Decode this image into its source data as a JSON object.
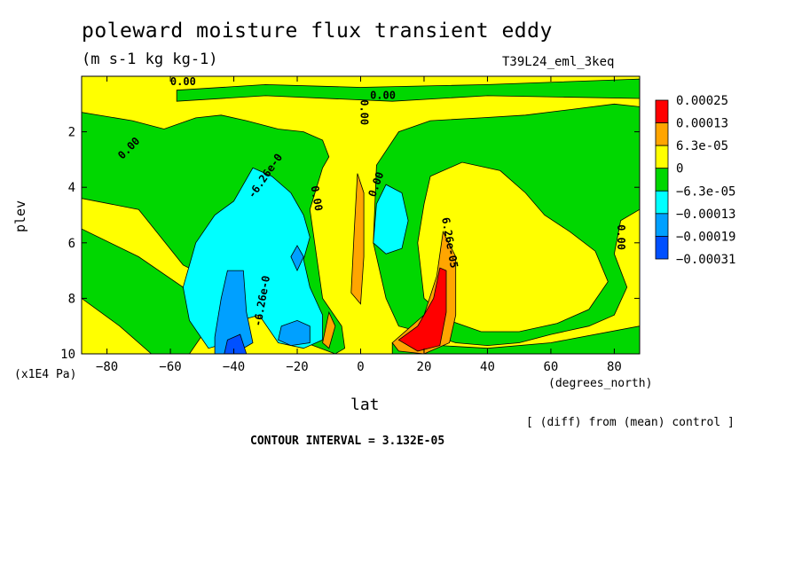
{
  "chart_data": {
    "type": "heatmap",
    "subtype": "filled-contour",
    "title": "poleward moisture flux transient eddy",
    "subtitle": "(m s-1 kg kg-1)",
    "run_label": "T39L24_eml_3keq",
    "xlabel": "lat",
    "x_unit": "(degrees_north)",
    "ylabel": "plev",
    "y_unit": "(x1E4 Pa)",
    "xlim": [
      -88,
      88
    ],
    "ylim": [
      0,
      10
    ],
    "y_inverted": true,
    "x_ticks": [
      -80,
      -60,
      -40,
      -20,
      0,
      20,
      40,
      60,
      80
    ],
    "y_ticks": [
      2,
      4,
      6,
      8,
      10
    ],
    "note": "[ (diff) from (mean) control ]",
    "contour_interval_text": "CONTOUR INTERVAL = 3.132E-05",
    "colorbar": {
      "levels": [
        "0.00025",
        "0.00013",
        "6.3e-05",
        "0",
        "-6.3e-05",
        "-0.00013",
        "-0.00019",
        "-0.00031"
      ],
      "colors": [
        "#ff0000",
        "#ffa500",
        "#ffff00",
        "#00d700",
        "#00ffff",
        "#00a0ff",
        "#0050ff"
      ]
    },
    "contour_labels": [
      {
        "text": "0.00",
        "x": -73,
        "y": 2.6,
        "rot": -45
      },
      {
        "text": "0.00",
        "x": -56,
        "y": 0.2,
        "rot": 0
      },
      {
        "text": "0.00",
        "x": 1,
        "y": 1.3,
        "rot": 90
      },
      {
        "text": "0.00",
        "x": 7,
        "y": 0.7,
        "rot": 0
      },
      {
        "text": "0.00",
        "x": -14,
        "y": 4.4,
        "rot": 80
      },
      {
        "text": "0.00",
        "x": 5,
        "y": 3.9,
        "rot": -70
      },
      {
        "text": "0.00",
        "x": 82,
        "y": 5.8,
        "rot": 90
      },
      {
        "text": "-6.26e-0",
        "x": -30,
        "y": 3.6,
        "rot": -55
      },
      {
        "text": "-6.26e-0",
        "x": -31,
        "y": 8.1,
        "rot": -80
      },
      {
        "text": "6.26e-05",
        "x": 28,
        "y": 6.0,
        "rot": 80
      }
    ],
    "regions": [
      {
        "level": "green",
        "color": "#00d700",
        "poly": [
          [
            -88,
            1.3
          ],
          [
            -72,
            1.6
          ],
          [
            -62,
            1.9
          ],
          [
            -52,
            1.5
          ],
          [
            -44,
            1.4
          ],
          [
            -36,
            1.6
          ],
          [
            -26,
            1.9
          ],
          [
            -18,
            2.0
          ],
          [
            -12,
            2.3
          ],
          [
            -10,
            2.9
          ],
          [
            -12,
            3.3
          ],
          [
            -16,
            4.8
          ],
          [
            -12,
            8.0
          ],
          [
            -6,
            9.0
          ],
          [
            -5,
            9.8
          ],
          [
            -8,
            10
          ],
          [
            -22,
            9.4
          ],
          [
            -34,
            8.2
          ],
          [
            -44,
            7.5
          ],
          [
            -56,
            6.8
          ],
          [
            -70,
            4.8
          ],
          [
            -88,
            4.4
          ]
        ]
      },
      {
        "level": "green",
        "color": "#00d700",
        "poly": [
          [
            -88,
            5.5
          ],
          [
            -70,
            6.5
          ],
          [
            -56,
            7.6
          ],
          [
            -48,
            9.0
          ],
          [
            -54,
            10
          ],
          [
            -66,
            10
          ],
          [
            -76,
            9.0
          ],
          [
            -88,
            8.0
          ]
        ]
      },
      {
        "level": "green",
        "color": "#00d700",
        "poly": [
          [
            -58,
            0.5
          ],
          [
            -30,
            0.3
          ],
          [
            0,
            0.4
          ],
          [
            40,
            0.3
          ],
          [
            88,
            0.1
          ],
          [
            88,
            0.8
          ],
          [
            40,
            0.7
          ],
          [
            10,
            0.9
          ],
          [
            -30,
            0.7
          ],
          [
            -58,
            0.9
          ]
        ]
      },
      {
        "level": "green",
        "color": "#00d700",
        "poly": [
          [
            5,
            3.2
          ],
          [
            12,
            2.0
          ],
          [
            22,
            1.6
          ],
          [
            38,
            1.5
          ],
          [
            52,
            1.4
          ],
          [
            66,
            1.2
          ],
          [
            80,
            1.0
          ],
          [
            88,
            1.1
          ],
          [
            88,
            4.8
          ],
          [
            82,
            5.2
          ],
          [
            80,
            6.4
          ],
          [
            84,
            7.6
          ],
          [
            80,
            8.6
          ],
          [
            72,
            9.0
          ],
          [
            60,
            9.3
          ],
          [
            50,
            9.6
          ],
          [
            40,
            9.7
          ],
          [
            30,
            9.6
          ],
          [
            22,
            9.3
          ],
          [
            12,
            9.0
          ],
          [
            8,
            8.0
          ],
          [
            4,
            6.0
          ]
        ]
      },
      {
        "level": "yellow",
        "color": "#ffff00",
        "poly": [
          [
            22,
            3.6
          ],
          [
            32,
            3.1
          ],
          [
            44,
            3.4
          ],
          [
            52,
            4.2
          ],
          [
            58,
            5.0
          ],
          [
            66,
            5.6
          ],
          [
            74,
            6.3
          ],
          [
            78,
            7.4
          ],
          [
            72,
            8.4
          ],
          [
            62,
            8.9
          ],
          [
            50,
            9.2
          ],
          [
            38,
            9.2
          ],
          [
            28,
            8.8
          ],
          [
            20,
            8.0
          ],
          [
            18,
            6.0
          ],
          [
            20,
            4.6
          ]
        ]
      },
      {
        "level": "green",
        "color": "#00d700",
        "poly": [
          [
            10,
            9.6
          ],
          [
            40,
            9.8
          ],
          [
            60,
            9.6
          ],
          [
            88,
            9.0
          ],
          [
            88,
            10
          ],
          [
            10,
            10
          ]
        ]
      },
      {
        "level": "cyan",
        "color": "#00ffff",
        "poly": [
          [
            -52,
            6.0
          ],
          [
            -46,
            5.0
          ],
          [
            -40,
            4.5
          ],
          [
            -34,
            3.3
          ],
          [
            -28,
            3.6
          ],
          [
            -22,
            4.2
          ],
          [
            -18,
            5.0
          ],
          [
            -16,
            5.8
          ],
          [
            -18,
            6.6
          ],
          [
            -16,
            7.6
          ],
          [
            -12,
            8.6
          ],
          [
            -12,
            9.5
          ],
          [
            -18,
            9.8
          ],
          [
            -26,
            9.6
          ],
          [
            -32,
            8.6
          ],
          [
            -38,
            8.8
          ],
          [
            -42,
            9.6
          ],
          [
            -48,
            9.8
          ],
          [
            -54,
            8.8
          ],
          [
            -56,
            7.6
          ]
        ]
      },
      {
        "level": "cyan",
        "color": "#00ffff",
        "poly": [
          [
            4,
            6.0
          ],
          [
            5,
            4.6
          ],
          [
            8,
            3.9
          ],
          [
            13,
            4.2
          ],
          [
            15,
            5.2
          ],
          [
            13,
            6.2
          ],
          [
            8,
            6.4
          ]
        ]
      },
      {
        "level": "blue",
        "color": "#00a0ff",
        "poly": [
          [
            -46,
            9.4
          ],
          [
            -44,
            8.0
          ],
          [
            -42,
            7.0
          ],
          [
            -37,
            7.0
          ],
          [
            -36,
            8.5
          ],
          [
            -34,
            9.6
          ],
          [
            -40,
            10
          ],
          [
            -46,
            10
          ]
        ]
      },
      {
        "level": "blue",
        "color": "#00a0ff",
        "poly": [
          [
            -25,
            9.0
          ],
          [
            -20,
            8.8
          ],
          [
            -16,
            9.0
          ],
          [
            -16,
            9.6
          ],
          [
            -22,
            9.7
          ],
          [
            -26,
            9.5
          ]
        ]
      },
      {
        "level": "blue",
        "color": "#00a0ff",
        "poly": [
          [
            -22,
            6.5
          ],
          [
            -20,
            6.1
          ],
          [
            -18,
            6.5
          ],
          [
            -20,
            7.0
          ]
        ]
      },
      {
        "level": "deep-blue",
        "color": "#0050ff",
        "poly": [
          [
            -43,
            10
          ],
          [
            -42,
            9.5
          ],
          [
            -38,
            9.3
          ],
          [
            -36,
            10
          ]
        ]
      },
      {
        "level": "orange",
        "color": "#ffa500",
        "poly": [
          [
            -3,
            7.8
          ],
          [
            -2,
            5.5
          ],
          [
            -1,
            3.5
          ],
          [
            1,
            4.2
          ],
          [
            1,
            6.5
          ],
          [
            0,
            8.2
          ]
        ]
      },
      {
        "level": "orange",
        "color": "#ffa500",
        "poly": [
          [
            -12,
            9.6
          ],
          [
            -10,
            8.5
          ],
          [
            -8,
            9.0
          ],
          [
            -10,
            9.8
          ]
        ]
      },
      {
        "level": "orange",
        "color": "#ffa500",
        "poly": [
          [
            10,
            9.6
          ],
          [
            20,
            8.6
          ],
          [
            24,
            7.2
          ],
          [
            26,
            5.6
          ],
          [
            30,
            6.5
          ],
          [
            30,
            8.6
          ],
          [
            28,
            9.6
          ],
          [
            20,
            10
          ],
          [
            12,
            9.9
          ]
        ]
      },
      {
        "level": "red",
        "color": "#ff0000",
        "poly": [
          [
            12,
            9.5
          ],
          [
            18,
            9.0
          ],
          [
            23,
            8.0
          ],
          [
            25,
            6.9
          ],
          [
            27,
            7.0
          ],
          [
            27,
            8.5
          ],
          [
            25,
            9.7
          ],
          [
            18,
            9.9
          ]
        ]
      }
    ]
  }
}
